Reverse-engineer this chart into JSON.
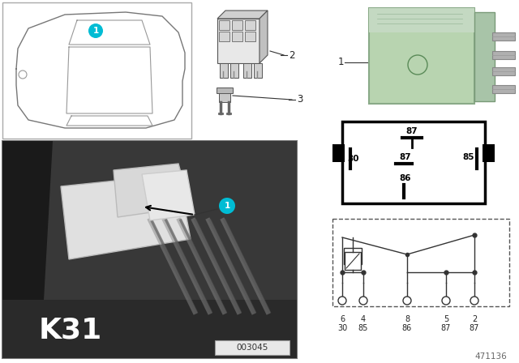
{
  "bg_color": "#ffffff",
  "teal_circle": "#00bcd4",
  "relay_green": "#b8d4b0",
  "diagram_id": "471136",
  "ref_num": "003045",
  "k31_label": "K31"
}
